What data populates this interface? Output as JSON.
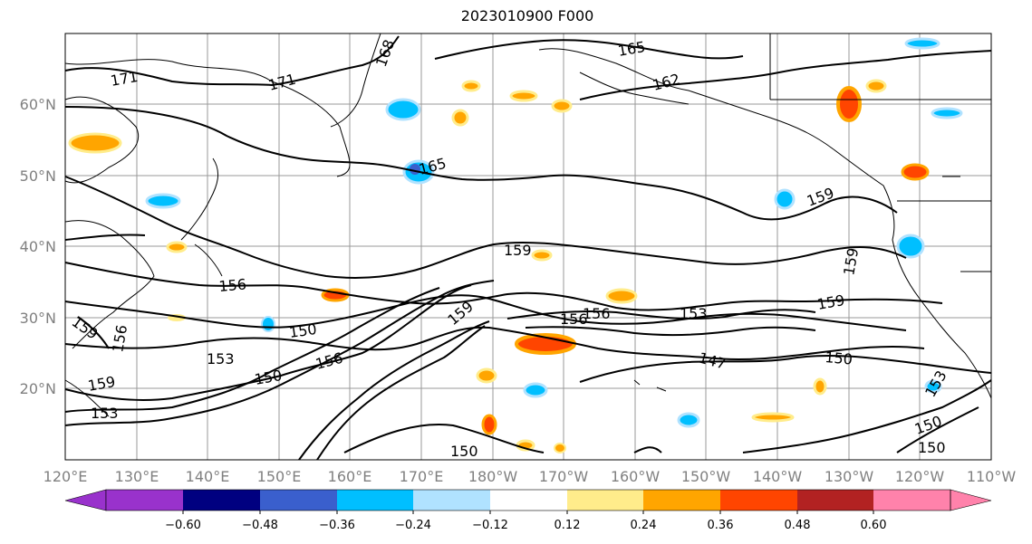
{
  "title": "2023010900 F000",
  "map": {
    "lon_labels": [
      "120°E",
      "130°E",
      "140°E",
      "150°E",
      "160°E",
      "170°E",
      "180°W",
      "170°W",
      "160°W",
      "150°W",
      "140°W",
      "130°W",
      "120°W",
      "110°W"
    ],
    "lat_labels": [
      "60°N",
      "50°N",
      "40°N",
      "30°N",
      "20°N"
    ],
    "contour_labels": [
      "171",
      "171",
      "168",
      "165",
      "162",
      "165",
      "159",
      "159",
      "156",
      "156",
      "150",
      "153",
      "150",
      "156",
      "159",
      "147",
      "150",
      "159",
      "153",
      "156",
      "150",
      "150",
      "159",
      "153",
      "156",
      "159",
      "150",
      "153",
      "159"
    ],
    "contour_color": "#000000",
    "gridline_color": "#999999",
    "coastline_color": "#000000"
  },
  "colorbar": {
    "ticks": [
      "−0.60",
      "−0.48",
      "−0.36",
      "−0.24",
      "−0.12",
      "0.12",
      "0.24",
      "0.36",
      "0.48",
      "0.60"
    ],
    "colors": [
      "#9932cc",
      "#000080",
      "#3a5fcd",
      "#00bfff",
      "#b0e2ff",
      "#ffffff",
      "#ffec8b",
      "#ffa500",
      "#ff4500",
      "#b22222",
      "#ff82ab"
    ]
  }
}
